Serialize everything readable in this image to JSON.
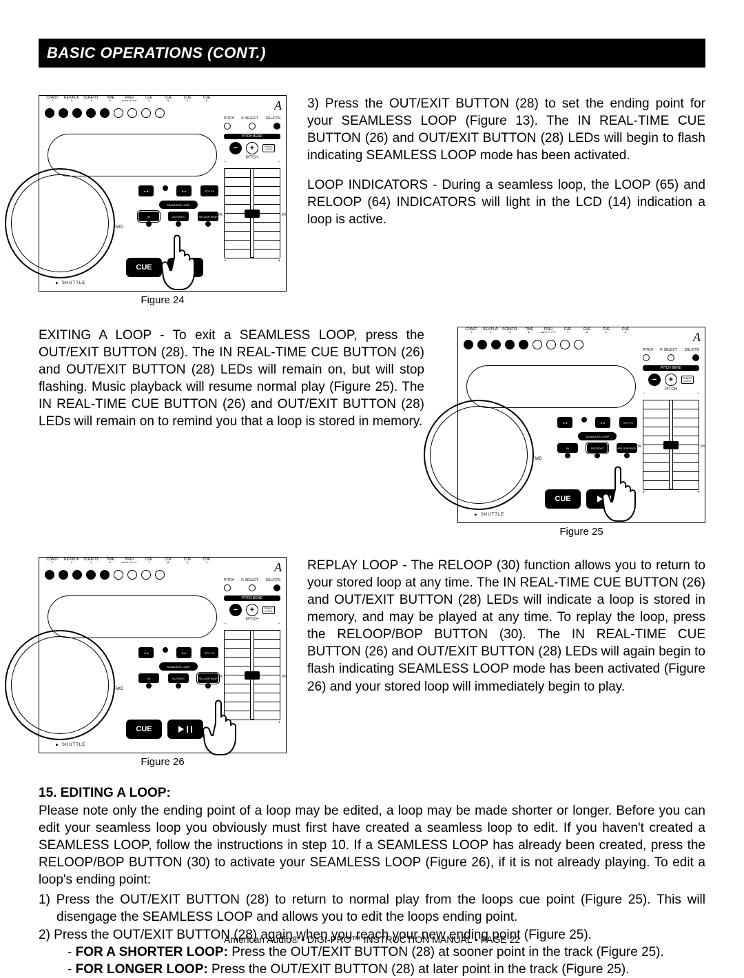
{
  "header": {
    "title": "BASIC OPERATIONS (CONT.)"
  },
  "figures": {
    "f24": "Figure 24",
    "f25": "Figure 25",
    "f26": "Figure 26"
  },
  "panel": {
    "top_labels": [
      "COAST",
      "REV/PLAY",
      "SCRATCH",
      "TIME",
      "PRG/ HOLD FX",
      "CUE",
      "CUE",
      "CUE",
      "CUE"
    ],
    "top_nums": [
      "2",
      "3",
      "4",
      "5",
      "6",
      "7",
      "8",
      "9",
      "0"
    ],
    "pitch_labels": [
      "PITCH",
      "P. SELECT",
      "SGL/CTN"
    ],
    "pitch_bend": "PITCH BEND",
    "tempo_lock": "TEMPO LOCK",
    "pitch_txt": "PITCH",
    "zero": "0%",
    "seamless": "SEAMLESS LOOP",
    "realtime": "IN REAL-TIME CUE",
    "outexit": "OUT/EXIT",
    "reloop": "RELOOP /BOP",
    "stvfx": "STV FX",
    "cue": "CUE",
    "fwd": "FWD",
    "shuttle": "SHUTTLE",
    "logo": "A"
  },
  "para3": "3) Press the OUT/EXIT BUTTON (28) to set the ending point for your SEAMLESS LOOP (Figure 13). The IN REAL-TIME CUE BUTTON (26) and OUT/EXIT BUTTON (28) LEDs will begin to flash indicating SEAMLESS LOOP mode has been activated.",
  "loop_ind_lead": "LOOP INDICATORS",
  "loop_ind_body": " - During a seamless loop, the LOOP (65) and RELOOP (64) INDICATORS will light in the LCD (14) indication a loop is active.",
  "exit_lead": "EXITING A LOOP",
  "exit_body": " - To exit a SEAMLESS LOOP, press the OUT/EXIT BUTTON (28). The IN REAL-TIME CUE BUTTON (26) and OUT/EXIT BUTTON (28) LEDs will remain on, but will stop flashing. Music playback will resume normal play (Figure 25). The IN REAL-TIME CUE BUTTON (26) and OUT/EXIT BUTTON (28) LEDs will remain on to remind you that a loop is stored in memory.",
  "replay_lead": "REPLAY LOOP",
  "replay_body": " - The RELOOP (30) function allows you to return to your stored loop at any time. The IN REAL-TIME CUE BUTTON (26) and OUT/EXIT BUTTON (28) LEDs will indicate a loop is stored in memory, and may be played at any time. To replay the loop, press the RELOOP/BOP BUTTON (30). The IN REAL-TIME CUE BUTTON (26) and OUT/EXIT BUTTON (28) LEDs will again begin to flash indicating SEAMLESS LOOP mode has been activated (Figure 26) and your stored loop will immediately begin to play.",
  "edit_title": "15. EDITING A LOOP:",
  "edit_intro": "Please note only the ending point of a loop may be edited, a loop may be made shorter or longer. Before you can edit your seamless loop you obviously must first have created a seamless loop to edit. If you haven't created a SEAMLESS LOOP, follow the instructions in step 10. If a SEAMLESS LOOP has already been created, press the RELOOP/BOP BUTTON (30) to activate your SEAMLESS LOOP (Figure 26), if it is not already playing. To edit a loop's ending point:",
  "edit_1": "1) Press the OUT/EXIT BUTTON (28) to return to normal play from the loops cue point (Figure 25). This will disengage the SEAMLESS LOOP and allows you to edit the loops ending point.",
  "edit_2": "2) Press the OUT/EXIT BUTTON (28) again when you reach your new ending point (Figure 25).",
  "edit_2a_lead": "FOR A SHORTER LOOP:",
  "edit_2a_body": " Press the OUT/EXIT BUTTON (28) at sooner point in the track (Figure 25).",
  "edit_2b_lead": "FOR LONGER LOOP:",
  "edit_2b_body": " Press the OUT/EXIT BUTTON (28) at later point in the track (Figure 25).",
  "footer": "American Audio® • DIGI-PRO™ INSTRUCTION MANUAL • PAGE 22"
}
